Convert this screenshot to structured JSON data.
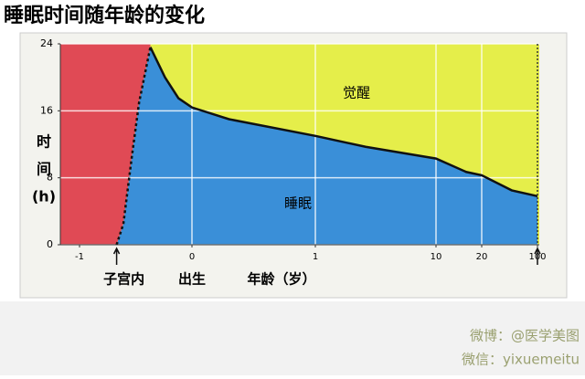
{
  "chart_data": {
    "type": "area",
    "title": "睡眠时间随年龄的变化",
    "y_label_lines": [
      "时",
      "间",
      "(h)"
    ],
    "x_label": "年龄（岁）",
    "x": [
      -0.67,
      -0.61,
      -0.53,
      -0.47,
      -0.37,
      -0.24,
      -0.12,
      0,
      0.3,
      1,
      4.75,
      10,
      16.6,
      20,
      63,
      100
    ],
    "series": [
      {
        "name": "睡眠",
        "color": "#3a8fd8",
        "values": [
          0,
          2.5,
          11,
          17,
          23.6,
          20,
          17.5,
          16.4,
          15,
          13,
          11.7,
          10.3,
          8.7,
          8.3,
          6.5,
          5.8
        ]
      }
    ],
    "awake_label": "觉醒",
    "awake_color": "#e5ee4a",
    "womb_color": "#e04a55",
    "xlim": [
      -1,
      100
    ],
    "xticks": [
      -1,
      0,
      1,
      10,
      20,
      100
    ],
    "ylim": [
      0,
      24
    ],
    "yticks": [
      0,
      8,
      16,
      24
    ],
    "grid": true,
    "annotations": [
      {
        "text": "子宫内",
        "x": -0.67
      },
      {
        "text": "出生",
        "x": 0
      }
    ],
    "watermark": [
      "微博：@医学美图",
      "微信：yixuemeitu"
    ]
  }
}
